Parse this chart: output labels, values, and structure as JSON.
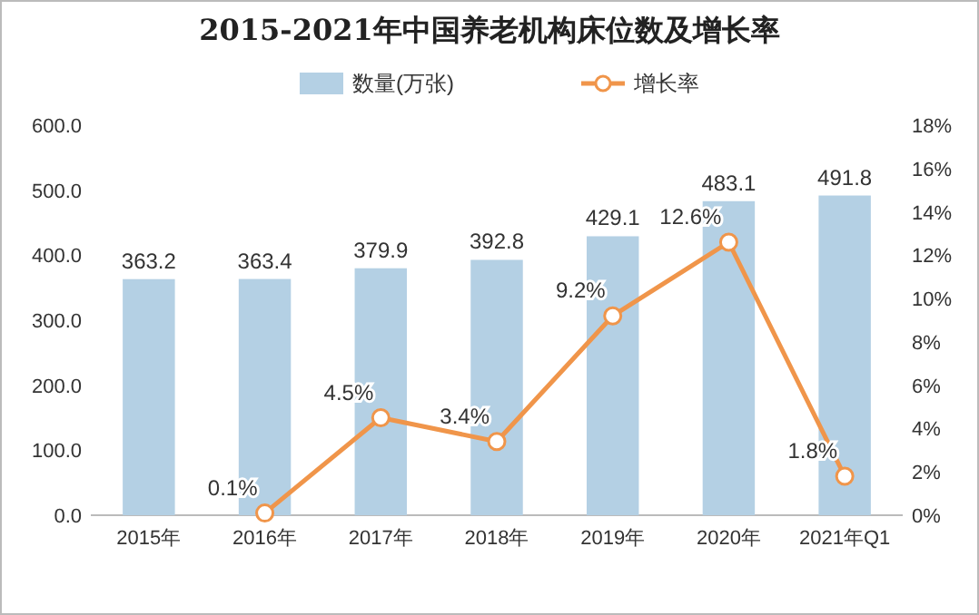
{
  "chart_data": {
    "type": "bar",
    "title": "2015-2021年中国养老机构床位数及增长率",
    "categories": [
      "2015年",
      "2016年",
      "2017年",
      "2018年",
      "2019年",
      "2020年",
      "2021年Q1"
    ],
    "series": [
      {
        "name": "数量(万张)",
        "color": "#b4d0e4",
        "values": [
          363.2,
          363.4,
          379.9,
          392.8,
          429.1,
          483.1,
          491.8
        ],
        "value_labels": [
          "363.2",
          "363.4",
          "379.9",
          "392.8",
          "429.1",
          "483.1",
          "491.8"
        ]
      },
      {
        "name": "增长率",
        "type": "line",
        "axis": "y2",
        "color": "#f0954a",
        "marker": "circle",
        "values": [
          null,
          0.1,
          4.5,
          3.4,
          9.2,
          12.6,
          1.8
        ],
        "value_labels": [
          null,
          "0.1%",
          "4.5%",
          "3.4%",
          "9.2%",
          "12.6%",
          "1.8%"
        ]
      }
    ],
    "ylim": [
      0,
      600
    ],
    "yticks": [
      {
        "value": 0,
        "label": "0.0"
      },
      {
        "value": 100,
        "label": "100.0"
      },
      {
        "value": 200,
        "label": "200.0"
      },
      {
        "value": 300,
        "label": "300.0"
      },
      {
        "value": 400,
        "label": "400.0"
      },
      {
        "value": 500,
        "label": "500.0"
      },
      {
        "value": 600,
        "label": "600.0"
      }
    ],
    "y2lim": [
      0,
      18
    ],
    "y2ticks": [
      {
        "value": 0,
        "label": "0%"
      },
      {
        "value": 2,
        "label": "2%"
      },
      {
        "value": 4,
        "label": "4%"
      },
      {
        "value": 6,
        "label": "6%"
      },
      {
        "value": 8,
        "label": "8%"
      },
      {
        "value": 10,
        "label": "10%"
      },
      {
        "value": 12,
        "label": "12%"
      },
      {
        "value": 14,
        "label": "14%"
      },
      {
        "value": 16,
        "label": "16%"
      },
      {
        "value": 18,
        "label": "18%"
      }
    ],
    "legend": "top"
  }
}
